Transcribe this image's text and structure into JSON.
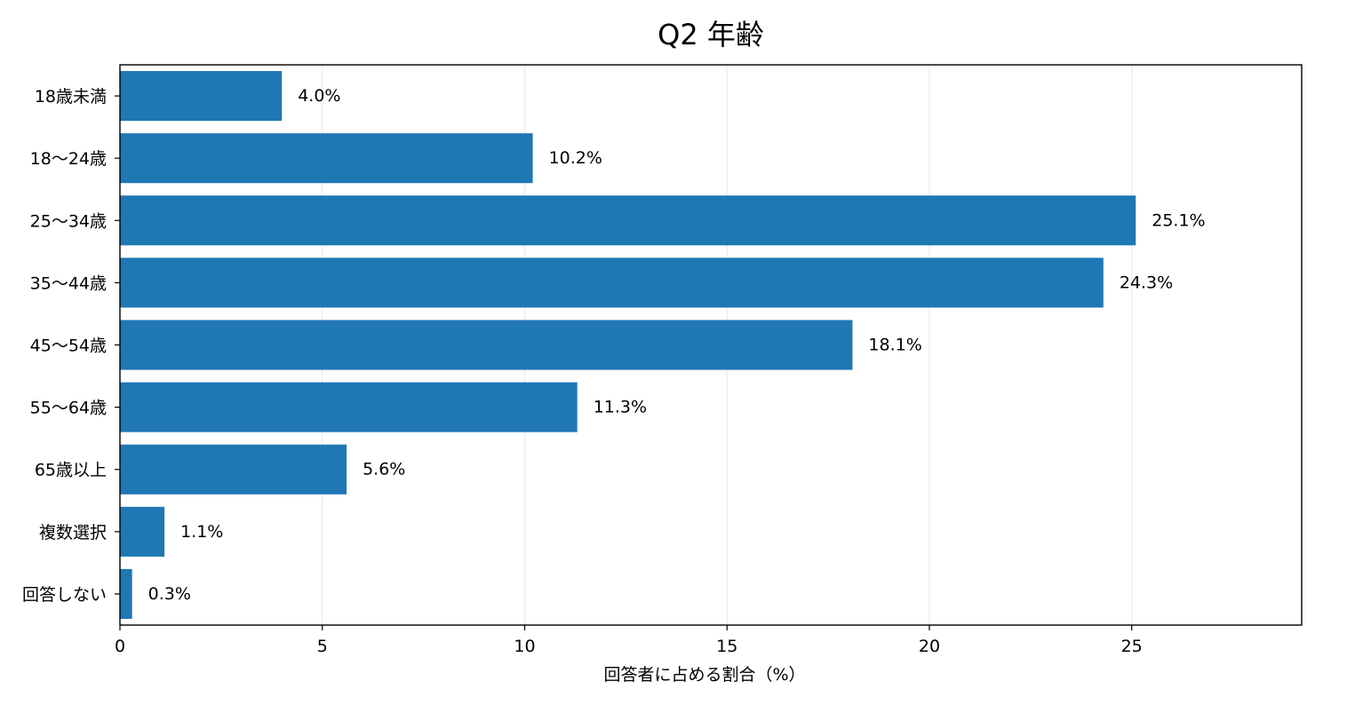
{
  "chart_data": {
    "type": "bar",
    "orientation": "horizontal",
    "title": "Q2 年齢",
    "xlabel": "回答者に占める割合（%）",
    "ylabel": "",
    "xlim": [
      0,
      29.2
    ],
    "x_ticks": [
      0,
      5,
      10,
      15,
      20,
      25
    ],
    "grid": "vertical",
    "categories": [
      "18歳未満",
      "18～24歳",
      "25～34歳",
      "35～44歳",
      "45～54歳",
      "55～64歳",
      "65歳以上",
      "複数選択",
      "回答しない"
    ],
    "values": [
      4.0,
      10.2,
      25.1,
      24.3,
      18.1,
      11.3,
      5.6,
      1.1,
      0.3
    ],
    "value_labels": [
      "4.0%",
      "10.2%",
      "25.1%",
      "24.3%",
      "18.1%",
      "11.3%",
      "5.6%",
      "1.1%",
      "0.3%"
    ],
    "bar_color": "#1f77b4",
    "grid_color": "#ebebeb"
  }
}
